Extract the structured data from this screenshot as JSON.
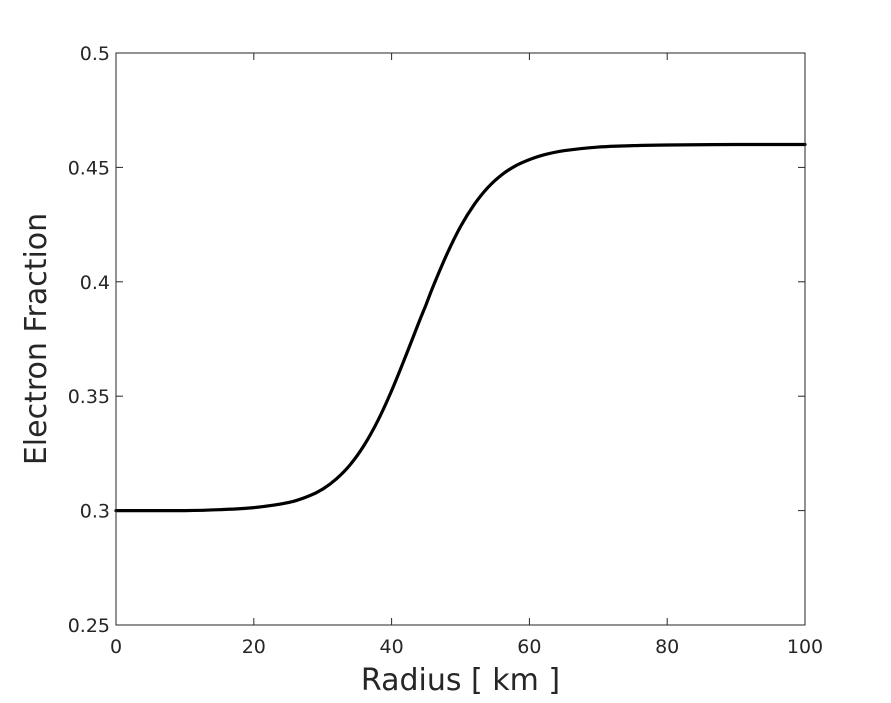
{
  "chart_data": {
    "type": "line",
    "xlabel": "Radius [ km ]",
    "ylabel": "Electron Fraction",
    "xlim": [
      0,
      100
    ],
    "ylim": [
      0.25,
      0.5
    ],
    "xticks": [
      0,
      20,
      40,
      60,
      80,
      100
    ],
    "xtick_labels": [
      "0",
      "20",
      "40",
      "60",
      "80",
      "100"
    ],
    "yticks": [
      0.25,
      0.3,
      0.35,
      0.4,
      0.45,
      0.5
    ],
    "ytick_labels": [
      "0.25",
      "0.3",
      "0.35",
      "0.4",
      "0.45",
      "0.5"
    ],
    "grid": false,
    "box": true,
    "series": [
      {
        "color": "#000000",
        "x": [
          0,
          5,
          10,
          15,
          20,
          25,
          28,
          30,
          32,
          34,
          36,
          38,
          40,
          42,
          44,
          45,
          46,
          48,
          50,
          52,
          54,
          56,
          58,
          60,
          62,
          65,
          70,
          75,
          80,
          90,
          100
        ],
        "y": [
          0.3,
          0.3,
          0.3,
          0.3004,
          0.3013,
          0.3035,
          0.3064,
          0.3094,
          0.3139,
          0.3201,
          0.3285,
          0.3393,
          0.3524,
          0.3672,
          0.3826,
          0.39,
          0.3978,
          0.4119,
          0.4241,
          0.4338,
          0.4413,
          0.4468,
          0.4507,
          0.4534,
          0.4554,
          0.4573,
          0.4589,
          0.4595,
          0.4598,
          0.46,
          0.46
        ]
      }
    ]
  }
}
